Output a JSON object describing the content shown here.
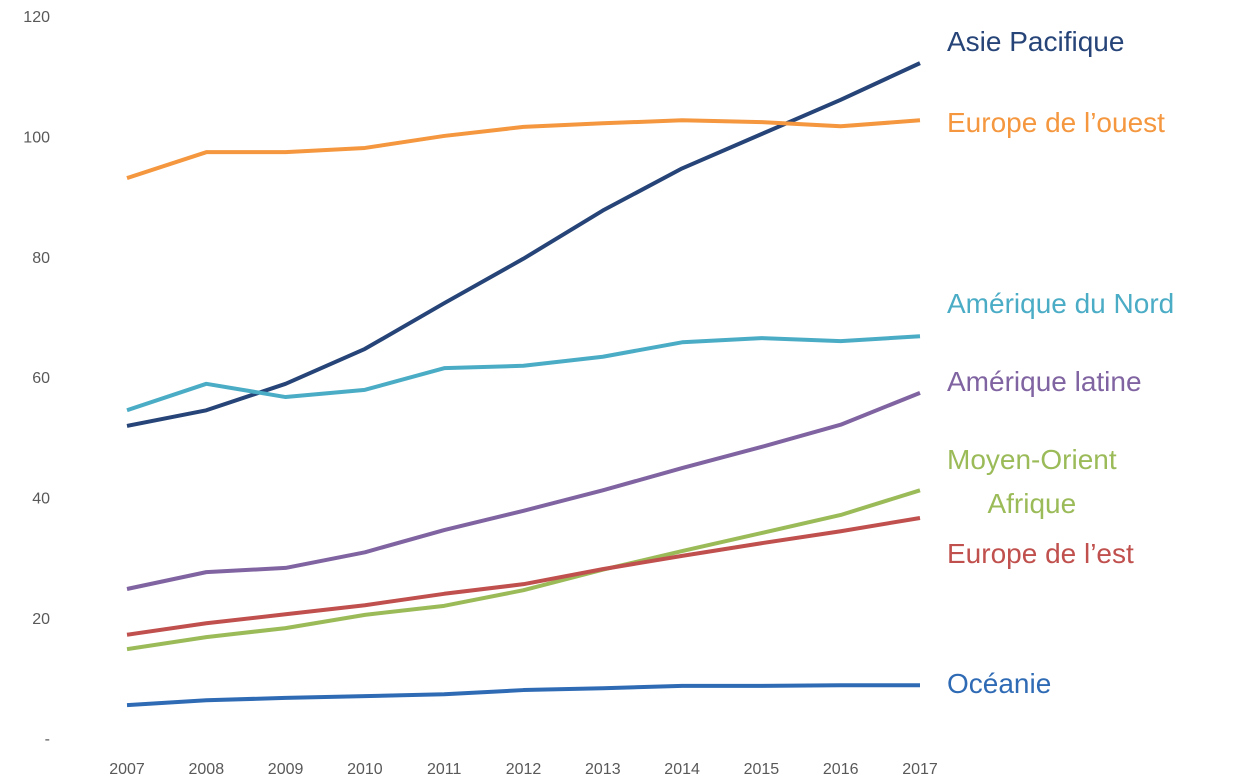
{
  "chart_data": {
    "type": "line",
    "x": [
      "2007",
      "2008",
      "2009",
      "2010",
      "2011",
      "2012",
      "2013",
      "2014",
      "2015",
      "2016",
      "2017"
    ],
    "ylim": [
      0,
      120
    ],
    "yticks": [
      {
        "value": 0,
        "label": "-"
      },
      20,
      40,
      60,
      80,
      100,
      120
    ],
    "grid": false,
    "series": [
      {
        "name": "Asie Pacifique",
        "color": "#264478",
        "values": [
          52.2,
          54.8,
          59.2,
          65,
          72.6,
          80,
          88,
          95,
          100.7,
          106.4,
          112.5
        ]
      },
      {
        "name": "Europe de l’ouest",
        "color": "#f4973f",
        "values": [
          93.4,
          97.7,
          97.7,
          98.4,
          100.4,
          101.9,
          102.5,
          103,
          102.7,
          102,
          103
        ]
      },
      {
        "name": "Amérique du Nord",
        "color": "#4bacc6",
        "values": [
          54.8,
          59.2,
          57,
          58.2,
          61.8,
          62.2,
          63.7,
          66.1,
          66.8,
          66.3,
          67.1
        ]
      },
      {
        "name": "Amérique latine",
        "color": "#8064a2",
        "values": [
          25.1,
          27.9,
          28.6,
          31.2,
          34.9,
          38.1,
          41.5,
          45.2,
          48.7,
          52.4,
          57.7
        ]
      },
      {
        "name": "Moyen-Orient\nAfrique",
        "color": "#9bbb59",
        "values": [
          15.1,
          17.1,
          18.6,
          20.8,
          22.3,
          24.9,
          28.3,
          31.4,
          34.4,
          37.4,
          41.5
        ]
      },
      {
        "name": "Europe de l’est",
        "color": "#c0504d",
        "values": [
          17.5,
          19.4,
          20.9,
          22.4,
          24.3,
          25.9,
          28.4,
          30.6,
          32.7,
          34.7,
          36.9
        ]
      },
      {
        "name": "Océanie",
        "color": "#2f6bb5",
        "values": [
          5.8,
          6.6,
          7,
          7.3,
          7.6,
          8.3,
          8.6,
          9,
          9,
          9.1,
          9.1
        ]
      }
    ]
  }
}
